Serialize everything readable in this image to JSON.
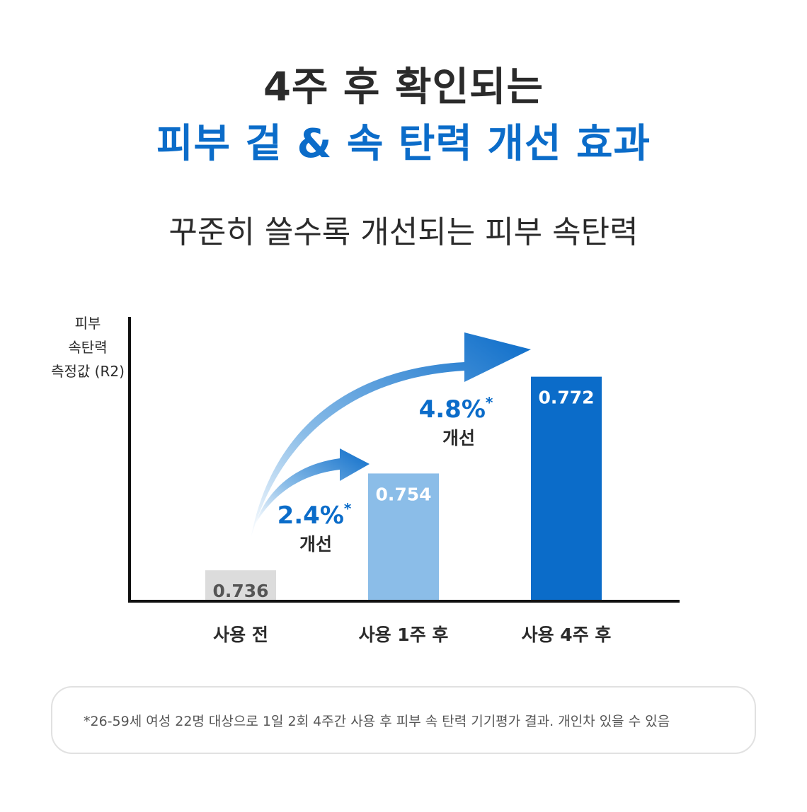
{
  "header": {
    "line1": "4주 후 확인되는",
    "line2": "피부 겉 & 속 탄력 개선 효과"
  },
  "subtitle": "꾸준히 쓸수록 개선되는 피부 속탄력",
  "chart_data": {
    "type": "bar",
    "ylabel_lines": [
      "피부",
      "속탄력",
      "측정값 (R2)"
    ],
    "categories": [
      "사용 전",
      "사용 1주 후",
      "사용 4주 후"
    ],
    "values": [
      0.736,
      0.754,
      0.772
    ],
    "value_labels": [
      "0.736",
      "0.754",
      "0.772"
    ],
    "bar_colors": [
      "#dcdcdc",
      "#8bbde8",
      "#0b6cc9"
    ],
    "value_label_colors": [
      "#555555",
      "#ffffff",
      "#ffffff"
    ],
    "annotations": [
      {
        "percent": "2.4%",
        "mark": "*",
        "text": "개선"
      },
      {
        "percent": "4.8%",
        "mark": "*",
        "text": "개선"
      }
    ],
    "grid": false,
    "legend": "none"
  },
  "footnote": "*26-59세 여성 22명 대상으로 1일 2회 4주간 사용 후 피부 속 탄력 기기평가 결과. 개인차 있을 수 있음",
  "colors": {
    "accent": "#0b6cc9",
    "text_dark": "#2b2b2b",
    "text_note": "#555555",
    "box_border": "#e1e1e1"
  }
}
